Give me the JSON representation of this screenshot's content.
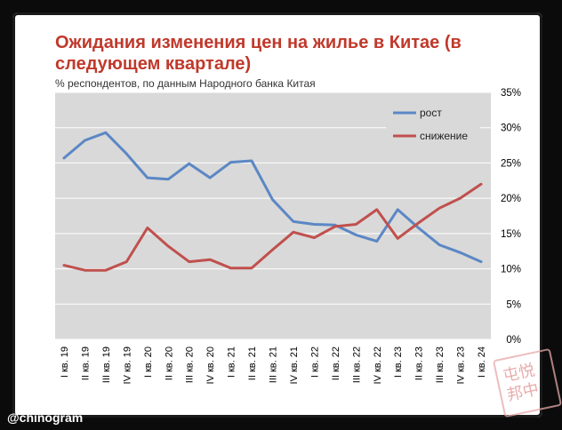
{
  "header": {
    "title": "Ожидания изменения цен на жилье в Китае (в следующем квартале)",
    "subtitle": "% респондентов, по данным Народного банка Китая"
  },
  "watermark": "@chinogram",
  "stamp": {
    "text": "屯悦\n邦中"
  },
  "colors": {
    "rise": "#5b87c5",
    "fall": "#c0504d",
    "plot_bg": "#d9d9d9",
    "title": "#c0392b"
  },
  "chart_data": {
    "type": "line",
    "categories": [
      "I кв. 19",
      "II кв. 19",
      "III кв. 19",
      "IV кв. 19",
      "I кв. 20",
      "II кв. 20",
      "III кв. 20",
      "IV кв. 20",
      "I кв. 21",
      "II кв. 21",
      "III кв. 21",
      "IV кв. 21",
      "I кв. 22",
      "II кв. 22",
      "III кв. 22",
      "IV кв. 22",
      "I кв. 23",
      "II кв. 23",
      "III кв. 23",
      "IV кв. 23",
      "I кв. 24"
    ],
    "series": [
      {
        "name": "рост",
        "color": "#5b87c5",
        "values": [
          25.7,
          28.2,
          29.3,
          26.3,
          22.9,
          22.7,
          24.9,
          22.9,
          25.1,
          25.3,
          19.8,
          16.7,
          16.3,
          16.2,
          14.8,
          13.9,
          18.4,
          15.8,
          13.4,
          12.3,
          11.0
        ]
      },
      {
        "name": "снижение",
        "color": "#c0504d",
        "values": [
          10.5,
          9.8,
          9.8,
          11.0,
          15.8,
          13.2,
          11.0,
          11.3,
          10.1,
          10.1,
          12.7,
          15.2,
          14.4,
          16.0,
          16.3,
          18.4,
          14.3,
          16.5,
          18.6,
          20.0,
          22.0
        ]
      }
    ],
    "ylim": [
      0,
      35
    ],
    "yticks": [
      "0%",
      "5%",
      "10%",
      "15%",
      "20%",
      "25%",
      "30%",
      "35%"
    ],
    "grid": true,
    "legend": "top-right",
    "y_axis_side": "right"
  }
}
